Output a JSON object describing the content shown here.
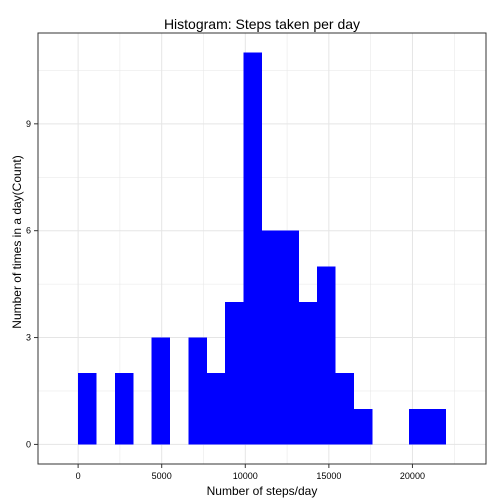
{
  "chart_data": {
    "type": "bar",
    "title": "Histogram: Steps taken per day",
    "xlabel": "Number of steps/day",
    "ylabel": "Number of times in a day(Count)",
    "bin_width": 1100,
    "bins": [
      {
        "start": 0,
        "end": 1100,
        "count": 2
      },
      {
        "start": 1100,
        "end": 2200,
        "count": 0
      },
      {
        "start": 2200,
        "end": 3300,
        "count": 2
      },
      {
        "start": 3300,
        "end": 4400,
        "count": 0
      },
      {
        "start": 4400,
        "end": 5500,
        "count": 3
      },
      {
        "start": 5500,
        "end": 6600,
        "count": 0
      },
      {
        "start": 6600,
        "end": 7700,
        "count": 3
      },
      {
        "start": 7700,
        "end": 8800,
        "count": 2
      },
      {
        "start": 8800,
        "end": 9900,
        "count": 4
      },
      {
        "start": 9900,
        "end": 11000,
        "count": 11
      },
      {
        "start": 11000,
        "end": 12100,
        "count": 6
      },
      {
        "start": 12100,
        "end": 13200,
        "count": 6
      },
      {
        "start": 13200,
        "end": 14300,
        "count": 4
      },
      {
        "start": 14300,
        "end": 15400,
        "count": 5
      },
      {
        "start": 15400,
        "end": 16500,
        "count": 2
      },
      {
        "start": 16500,
        "end": 17600,
        "count": 1
      },
      {
        "start": 17600,
        "end": 18700,
        "count": 0
      },
      {
        "start": 18700,
        "end": 19800,
        "count": 0
      },
      {
        "start": 19800,
        "end": 20900,
        "count": 1
      },
      {
        "start": 20900,
        "end": 22000,
        "count": 1
      }
    ],
    "x_ticks": [
      0,
      5000,
      10000,
      15000,
      20000
    ],
    "y_ticks": [
      0,
      3,
      6,
      9
    ],
    "xlim": [
      -2400,
      24400
    ],
    "ylim": [
      -0.55,
      11.55
    ],
    "bar_color": "#0000ff",
    "grid": true,
    "grid_color": "#e5e5e5",
    "panel_border_color": "#333333",
    "legend": "none"
  }
}
